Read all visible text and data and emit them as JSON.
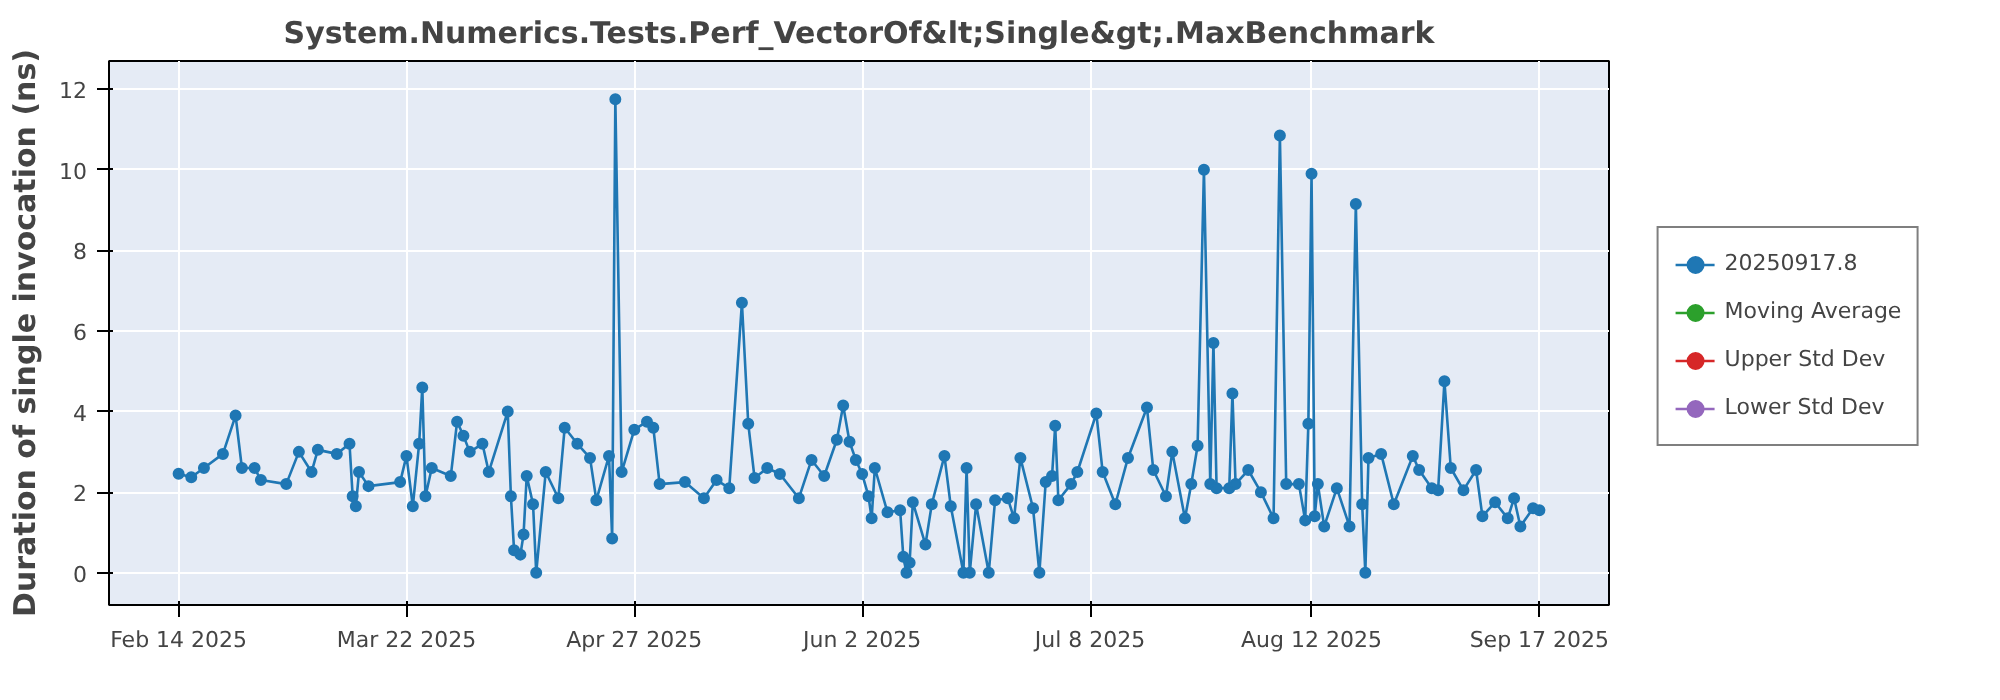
{
  "chart_data": {
    "type": "line",
    "title": "System.Numerics.Tests.Perf_VectorOf&lt;Single&gt;.MaxBenchmark",
    "ylabel": "Duration of single invocation (ns)",
    "xlim": [
      "2025-02-03",
      "2025-09-28"
    ],
    "xticks": [
      {
        "value": "2025-02-14",
        "label": "Feb 14 2025"
      },
      {
        "value": "2025-03-22",
        "label": "Mar 22 2025"
      },
      {
        "value": "2025-04-27",
        "label": "Apr 27 2025"
      },
      {
        "value": "2025-06-02",
        "label": "Jun 2 2025"
      },
      {
        "value": "2025-07-08",
        "label": "Jul 8 2025"
      },
      {
        "value": "2025-08-12",
        "label": "Aug 12 2025"
      },
      {
        "value": "2025-09-17",
        "label": "Sep 17 2025"
      }
    ],
    "ylim": [
      -0.8,
      12.7
    ],
    "yticks": [
      0,
      2,
      4,
      6,
      8,
      10,
      12
    ],
    "grid": true,
    "legend": "right",
    "marker": "circle",
    "line_style": "solid",
    "series": [
      {
        "name": "20250917.8",
        "color": "#1f77b4",
        "x": [
          "2025-02-14",
          "2025-02-16",
          "2025-02-18",
          "2025-02-21",
          "2025-02-23",
          "2025-02-24",
          "2025-02-26",
          "2025-02-27",
          "2025-03-03",
          "2025-03-05",
          "2025-03-07",
          "2025-03-08",
          "2025-03-11",
          "2025-03-13",
          "2025-03-13T12:00",
          "2025-03-14",
          "2025-03-14T12:00",
          "2025-03-16",
          "2025-03-21",
          "2025-03-22",
          "2025-03-23",
          "2025-03-24",
          "2025-03-24T12:00",
          "2025-03-25",
          "2025-03-26",
          "2025-03-29",
          "2025-03-30",
          "2025-03-31",
          "2025-04-01",
          "2025-04-03",
          "2025-04-04",
          "2025-04-07",
          "2025-04-07T12:00",
          "2025-04-08",
          "2025-04-09",
          "2025-04-09T12:00",
          "2025-04-10",
          "2025-04-11",
          "2025-04-11T12:00",
          "2025-04-13",
          "2025-04-15",
          "2025-04-16",
          "2025-04-18",
          "2025-04-20",
          "2025-04-21",
          "2025-04-23",
          "2025-04-23T12:00",
          "2025-04-24",
          "2025-04-25",
          "2025-04-27",
          "2025-04-29",
          "2025-04-30",
          "2025-05-01",
          "2025-05-05",
          "2025-05-08",
          "2025-05-10",
          "2025-05-12",
          "2025-05-14",
          "2025-05-15",
          "2025-05-16",
          "2025-05-18",
          "2025-05-20",
          "2025-05-23",
          "2025-05-25",
          "2025-05-27",
          "2025-05-29",
          "2025-05-30",
          "2025-05-31",
          "2025-06-01",
          "2025-06-02",
          "2025-06-03",
          "2025-06-03T12:00",
          "2025-06-04",
          "2025-06-06",
          "2025-06-08",
          "2025-06-08T12:00",
          "2025-06-09",
          "2025-06-09T12:00",
          "2025-06-10",
          "2025-06-12",
          "2025-06-13",
          "2025-06-15",
          "2025-06-16",
          "2025-06-18",
          "2025-06-18T12:00",
          "2025-06-19",
          "2025-06-20",
          "2025-06-22",
          "2025-06-23",
          "2025-06-25",
          "2025-06-26",
          "2025-06-27",
          "2025-06-29",
          "2025-06-30",
          "2025-07-01",
          "2025-07-02",
          "2025-07-02T12:00",
          "2025-07-03",
          "2025-07-05",
          "2025-07-06",
          "2025-07-09",
          "2025-07-10",
          "2025-07-12",
          "2025-07-14",
          "2025-07-17",
          "2025-07-18",
          "2025-07-20",
          "2025-07-21",
          "2025-07-23",
          "2025-07-24",
          "2025-07-25",
          "2025-07-26",
          "2025-07-27",
          "2025-07-27T12:00",
          "2025-07-28",
          "2025-07-30",
          "2025-07-30T12:00",
          "2025-07-31",
          "2025-08-02",
          "2025-08-04",
          "2025-08-06",
          "2025-08-07",
          "2025-08-08",
          "2025-08-10",
          "2025-08-11",
          "2025-08-11T12:00",
          "2025-08-12",
          "2025-08-12T12:00",
          "2025-08-13",
          "2025-08-14",
          "2025-08-16",
          "2025-08-18",
          "2025-08-19",
          "2025-08-20",
          "2025-08-20T12:00",
          "2025-08-21",
          "2025-08-23",
          "2025-08-25",
          "2025-08-28",
          "2025-08-29",
          "2025-08-31",
          "2025-09-01",
          "2025-09-02",
          "2025-09-03",
          "2025-09-05",
          "2025-09-07",
          "2025-09-08",
          "2025-09-10",
          "2025-09-12",
          "2025-09-13",
          "2025-09-14",
          "2025-09-16",
          "2025-09-17"
        ],
        "values": [
          2.46,
          2.37,
          2.6,
          2.95,
          3.9,
          2.6,
          2.6,
          2.3,
          2.2,
          3.0,
          2.5,
          3.05,
          2.95,
          3.2,
          1.9,
          1.65,
          2.5,
          2.15,
          2.25,
          2.9,
          1.65,
          3.2,
          4.6,
          1.9,
          2.6,
          2.4,
          3.75,
          3.4,
          3.0,
          3.2,
          2.5,
          4.0,
          1.9,
          0.56,
          0.45,
          0.95,
          2.4,
          1.7,
          0.0,
          2.5,
          1.85,
          3.6,
          3.2,
          2.85,
          1.8,
          2.9,
          0.85,
          11.75,
          2.5,
          3.55,
          3.75,
          3.6,
          2.2,
          2.25,
          1.85,
          2.3,
          2.1,
          6.7,
          3.7,
          2.35,
          2.6,
          2.45,
          1.85,
          2.8,
          2.4,
          3.3,
          4.15,
          3.25,
          2.8,
          2.45,
          1.9,
          1.35,
          2.6,
          1.5,
          1.55,
          0.4,
          0.0,
          0.25,
          1.75,
          0.7,
          1.7,
          2.9,
          1.65,
          0.0,
          2.6,
          0.0,
          1.7,
          0.0,
          1.8,
          1.85,
          1.35,
          2.85,
          1.6,
          0.0,
          2.25,
          2.4,
          3.65,
          1.8,
          2.2,
          2.5,
          3.95,
          2.5,
          1.7,
          2.85,
          4.1,
          2.55,
          1.9,
          3.0,
          1.35,
          2.2,
          3.15,
          10.0,
          2.2,
          5.7,
          2.1,
          2.1,
          4.45,
          2.2,
          2.55,
          2.0,
          1.35,
          10.85,
          2.2,
          2.2,
          1.3,
          3.7,
          9.9,
          1.4,
          2.2,
          1.15,
          2.1,
          1.15,
          9.15,
          1.7,
          0.0,
          2.85,
          2.95,
          1.7,
          2.9,
          2.55,
          2.1,
          2.05,
          4.75,
          2.6,
          2.05,
          2.55,
          1.4,
          1.75,
          1.35,
          1.85,
          1.15,
          1.6,
          1.55
        ]
      },
      {
        "name": "Moving Average",
        "color": "#2ca02c",
        "values": [
          null
        ]
      },
      {
        "name": "Upper Std Dev",
        "color": "#d62728",
        "values": [
          null
        ]
      },
      {
        "name": "Lower Std Dev",
        "color": "#9467bd",
        "values": [
          null
        ]
      }
    ]
  }
}
